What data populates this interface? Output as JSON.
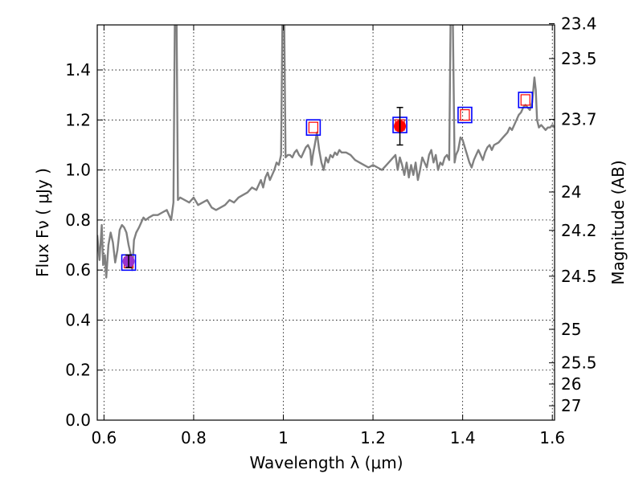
{
  "chart_data": {
    "type": "line",
    "title": "",
    "xlabel": "Wavelength  λ (μm)",
    "ylabel": "Flux  Fν  ( μJy )",
    "y2label": "Magnitude (AB)",
    "xlim": [
      0.585,
      1.605
    ],
    "ylim": [
      0.0,
      1.58
    ],
    "grid": true,
    "legend": "none",
    "x_ticks": [
      0.6,
      0.8,
      1.0,
      1.2,
      1.4,
      1.6
    ],
    "x_tick_labels": [
      "0.6",
      "0.8",
      "1",
      "1.2",
      "1.4",
      "1.6"
    ],
    "y_ticks": [
      0.0,
      0.2,
      0.4,
      0.6,
      0.8,
      1.0,
      1.2,
      1.4
    ],
    "y_tick_labels": [
      "0.0",
      "0.2",
      "0.4",
      "0.6",
      "0.8",
      "1.0",
      "1.2",
      "1.4"
    ],
    "y2_ticks": [
      23.4,
      23.5,
      23.7,
      24,
      24.2,
      24.5,
      25,
      25.5,
      26,
      27
    ],
    "y2_tick_labels": [
      "23.4",
      "23.5",
      "23.7",
      "24",
      "24.2",
      "24.5",
      "25",
      "25.5",
      "26",
      "27"
    ],
    "colors": {
      "spectrum": "#808080",
      "model_box": "#0000ff",
      "model_inner": "#ff0000",
      "obs_point_1": "#9932cc",
      "obs_point_2": "#ff0000",
      "errorbar": "#000000"
    },
    "series": [
      {
        "kind": "spectrum_line",
        "points": [
          [
            0.585,
            0.74
          ],
          [
            0.59,
            0.64
          ],
          [
            0.595,
            0.78
          ],
          [
            0.598,
            0.62
          ],
          [
            0.602,
            0.66
          ],
          [
            0.605,
            0.57
          ],
          [
            0.61,
            0.7
          ],
          [
            0.615,
            0.75
          ],
          [
            0.62,
            0.71
          ],
          [
            0.625,
            0.63
          ],
          [
            0.63,
            0.68
          ],
          [
            0.635,
            0.76
          ],
          [
            0.64,
            0.78
          ],
          [
            0.645,
            0.77
          ],
          [
            0.65,
            0.75
          ],
          [
            0.655,
            0.7
          ],
          [
            0.66,
            0.66
          ],
          [
            0.663,
            0.6
          ],
          [
            0.667,
            0.72
          ],
          [
            0.672,
            0.75
          ],
          [
            0.678,
            0.77
          ],
          [
            0.683,
            0.79
          ],
          [
            0.688,
            0.81
          ],
          [
            0.693,
            0.8
          ],
          [
            0.7,
            0.81
          ],
          [
            0.71,
            0.82
          ],
          [
            0.72,
            0.82
          ],
          [
            0.73,
            0.83
          ],
          [
            0.74,
            0.84
          ],
          [
            0.75,
            0.8
          ],
          [
            0.755,
            0.87
          ],
          [
            0.758,
            1.6
          ],
          [
            0.762,
            1.6
          ],
          [
            0.765,
            0.88
          ],
          [
            0.77,
            0.89
          ],
          [
            0.78,
            0.88
          ],
          [
            0.79,
            0.87
          ],
          [
            0.8,
            0.89
          ],
          [
            0.81,
            0.86
          ],
          [
            0.82,
            0.87
          ],
          [
            0.83,
            0.88
          ],
          [
            0.84,
            0.85
          ],
          [
            0.85,
            0.84
          ],
          [
            0.86,
            0.85
          ],
          [
            0.87,
            0.86
          ],
          [
            0.88,
            0.88
          ],
          [
            0.89,
            0.87
          ],
          [
            0.9,
            0.89
          ],
          [
            0.91,
            0.9
          ],
          [
            0.92,
            0.91
          ],
          [
            0.93,
            0.93
          ],
          [
            0.94,
            0.92
          ],
          [
            0.95,
            0.96
          ],
          [
            0.955,
            0.93
          ],
          [
            0.96,
            0.97
          ],
          [
            0.965,
            0.99
          ],
          [
            0.97,
            0.96
          ],
          [
            0.975,
            0.98
          ],
          [
            0.98,
            1.0
          ],
          [
            0.985,
            1.03
          ],
          [
            0.99,
            1.02
          ],
          [
            0.995,
            1.06
          ],
          [
            0.998,
            1.6
          ],
          [
            1.002,
            1.6
          ],
          [
            1.005,
            1.05
          ],
          [
            1.01,
            1.06
          ],
          [
            1.015,
            1.06
          ],
          [
            1.02,
            1.05
          ],
          [
            1.025,
            1.07
          ],
          [
            1.03,
            1.08
          ],
          [
            1.035,
            1.06
          ],
          [
            1.04,
            1.05
          ],
          [
            1.045,
            1.07
          ],
          [
            1.05,
            1.09
          ],
          [
            1.055,
            1.1
          ],
          [
            1.06,
            1.08
          ],
          [
            1.063,
            1.02
          ],
          [
            1.066,
            1.06
          ],
          [
            1.07,
            1.1
          ],
          [
            1.075,
            1.15
          ],
          [
            1.08,
            1.08
          ],
          [
            1.085,
            1.03
          ],
          [
            1.09,
            1.0
          ],
          [
            1.095,
            1.05
          ],
          [
            1.1,
            1.03
          ],
          [
            1.105,
            1.06
          ],
          [
            1.11,
            1.05
          ],
          [
            1.115,
            1.07
          ],
          [
            1.12,
            1.06
          ],
          [
            1.125,
            1.08
          ],
          [
            1.13,
            1.07
          ],
          [
            1.14,
            1.07
          ],
          [
            1.15,
            1.06
          ],
          [
            1.16,
            1.04
          ],
          [
            1.17,
            1.03
          ],
          [
            1.18,
            1.02
          ],
          [
            1.19,
            1.01
          ],
          [
            1.2,
            1.02
          ],
          [
            1.21,
            1.01
          ],
          [
            1.22,
            1.0
          ],
          [
            1.23,
            1.02
          ],
          [
            1.24,
            1.04
          ],
          [
            1.25,
            1.06
          ],
          [
            1.255,
            1.0
          ],
          [
            1.26,
            1.05
          ],
          [
            1.265,
            1.02
          ],
          [
            1.27,
            0.98
          ],
          [
            1.275,
            1.03
          ],
          [
            1.28,
            0.97
          ],
          [
            1.285,
            1.02
          ],
          [
            1.29,
            0.98
          ],
          [
            1.295,
            1.03
          ],
          [
            1.3,
            0.96
          ],
          [
            1.305,
            1.0
          ],
          [
            1.31,
            1.05
          ],
          [
            1.315,
            1.03
          ],
          [
            1.32,
            1.01
          ],
          [
            1.325,
            1.06
          ],
          [
            1.33,
            1.08
          ],
          [
            1.335,
            1.03
          ],
          [
            1.34,
            1.06
          ],
          [
            1.345,
            1.0
          ],
          [
            1.35,
            1.03
          ],
          [
            1.355,
            1.02
          ],
          [
            1.36,
            1.05
          ],
          [
            1.365,
            1.06
          ],
          [
            1.37,
            1.04
          ],
          [
            1.373,
            1.6
          ],
          [
            1.378,
            1.6
          ],
          [
            1.382,
            1.03
          ],
          [
            1.385,
            1.06
          ],
          [
            1.39,
            1.08
          ],
          [
            1.395,
            1.13
          ],
          [
            1.4,
            1.12
          ],
          [
            1.405,
            1.09
          ],
          [
            1.41,
            1.06
          ],
          [
            1.415,
            1.03
          ],
          [
            1.42,
            1.01
          ],
          [
            1.425,
            1.04
          ],
          [
            1.43,
            1.06
          ],
          [
            1.435,
            1.08
          ],
          [
            1.44,
            1.06
          ],
          [
            1.445,
            1.04
          ],
          [
            1.45,
            1.07
          ],
          [
            1.455,
            1.09
          ],
          [
            1.46,
            1.1
          ],
          [
            1.465,
            1.08
          ],
          [
            1.47,
            1.1
          ],
          [
            1.48,
            1.11
          ],
          [
            1.49,
            1.13
          ],
          [
            1.5,
            1.15
          ],
          [
            1.505,
            1.17
          ],
          [
            1.51,
            1.16
          ],
          [
            1.515,
            1.18
          ],
          [
            1.52,
            1.2
          ],
          [
            1.525,
            1.22
          ],
          [
            1.53,
            1.23
          ],
          [
            1.535,
            1.25
          ],
          [
            1.54,
            1.26
          ],
          [
            1.545,
            1.25
          ],
          [
            1.55,
            1.24
          ],
          [
            1.555,
            1.27
          ],
          [
            1.56,
            1.37
          ],
          [
            1.563,
            1.32
          ],
          [
            1.566,
            1.2
          ],
          [
            1.57,
            1.17
          ],
          [
            1.575,
            1.18
          ],
          [
            1.58,
            1.17
          ],
          [
            1.585,
            1.16
          ],
          [
            1.59,
            1.17
          ],
          [
            1.595,
            1.17
          ],
          [
            1.6,
            1.18
          ],
          [
            1.605,
            1.17
          ]
        ]
      },
      {
        "kind": "model_photometry",
        "points": [
          [
            0.655,
            0.63
          ],
          [
            1.067,
            1.17
          ],
          [
            1.26,
            1.18
          ],
          [
            1.405,
            1.22
          ],
          [
            1.54,
            1.28
          ]
        ]
      },
      {
        "kind": "observed_photometry",
        "points": [
          {
            "x": 0.655,
            "y": 0.635,
            "yerr": 0.025,
            "color": "#9932cc"
          },
          {
            "x": 1.26,
            "y": 1.175,
            "yerr": 0.075,
            "color": "#ff0000"
          }
        ]
      }
    ]
  }
}
